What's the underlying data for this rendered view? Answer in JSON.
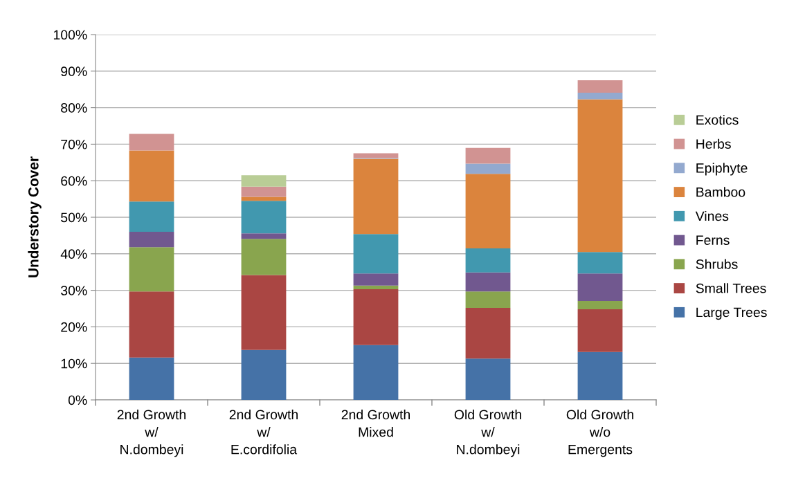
{
  "chart_data": {
    "type": "bar",
    "stacked": true,
    "ylabel": "Understory Cover",
    "categories": [
      "2nd Growth\nw/\nN.dombeyi",
      "2nd Growth\nw/\nE.cordifolia",
      "2nd Growth\nMixed",
      "Old Growth\nw/\nN.dombeyi",
      "Old Growth\nw/o\nEmergents"
    ],
    "series": [
      {
        "name": "Large Trees",
        "color": "#4572a7",
        "values": [
          11.6,
          13.7,
          15.0,
          11.3,
          13.1
        ]
      },
      {
        "name": "Small Trees",
        "color": "#aa4643",
        "values": [
          18.1,
          20.5,
          15.3,
          13.9,
          11.7
        ]
      },
      {
        "name": "Shrubs",
        "color": "#89a54e",
        "values": [
          12.1,
          9.9,
          1.0,
          4.5,
          2.3
        ]
      },
      {
        "name": "Ferns",
        "color": "#71588f",
        "values": [
          4.2,
          1.5,
          3.3,
          5.2,
          7.5
        ]
      },
      {
        "name": "Vines",
        "color": "#4198af",
        "values": [
          8.3,
          8.9,
          10.8,
          6.6,
          5.9
        ]
      },
      {
        "name": "Bamboo",
        "color": "#db843d",
        "values": [
          14.0,
          1.1,
          20.6,
          20.4,
          41.8
        ]
      },
      {
        "name": "Epiphyte",
        "color": "#93a9cf",
        "values": [
          0,
          0,
          0.2,
          2.8,
          1.8
        ]
      },
      {
        "name": "Herbs",
        "color": "#d19392",
        "values": [
          4.5,
          2.8,
          1.3,
          4.3,
          3.4
        ]
      },
      {
        "name": "Exotics",
        "color": "#b9cd96",
        "values": [
          0,
          3.1,
          0,
          0,
          0
        ]
      }
    ],
    "ylim": [
      0,
      100
    ],
    "yticks": [
      {
        "value": 0,
        "label": "0%"
      },
      {
        "value": 10,
        "label": "10%"
      },
      {
        "value": 20,
        "label": "20%"
      },
      {
        "value": 30,
        "label": "30%"
      },
      {
        "value": 40,
        "label": "40%"
      },
      {
        "value": 50,
        "label": "50%"
      },
      {
        "value": 60,
        "label": "60%"
      },
      {
        "value": 70,
        "label": "70%"
      },
      {
        "value": 80,
        "label": "80%"
      },
      {
        "value": 90,
        "label": "90%"
      },
      {
        "value": 100,
        "label": "100%"
      }
    ],
    "grid": "y",
    "legend": "right"
  }
}
